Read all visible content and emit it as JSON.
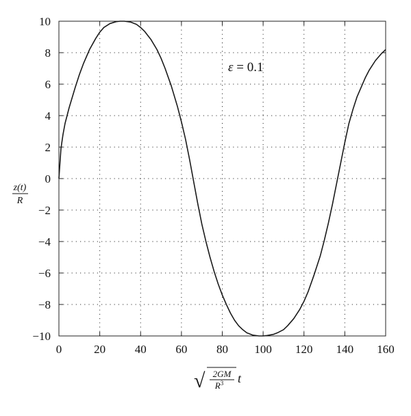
{
  "chart_data": {
    "type": "line",
    "title": "",
    "xlim": [
      0,
      160
    ],
    "ylim": [
      -10,
      10
    ],
    "x_ticks": [
      0,
      20,
      40,
      60,
      80,
      100,
      120,
      140,
      160
    ],
    "y_ticks": [
      10,
      8,
      6,
      4,
      2,
      0,
      -2,
      -4,
      -6,
      -8,
      -10
    ],
    "x_tick_labels": [
      "0",
      "20",
      "40",
      "60",
      "80",
      "100",
      "120",
      "140",
      "160"
    ],
    "y_tick_labels": [
      "10",
      "8",
      "6",
      "4",
      "2",
      "0",
      "−2",
      "−4",
      "−6",
      "−8",
      "−10"
    ],
    "grid": true,
    "grid_style": "dotted",
    "annotation": {
      "symbol": "ε",
      "text": " = 0.1"
    },
    "xlabel": {
      "radical": "√",
      "numerator": "2GM",
      "denominator": "R",
      "denominator_exp": "3",
      "variable": "t"
    },
    "ylabel": {
      "numerator": "z(t)",
      "denominator": "R"
    },
    "line_color": "#1a1a1a",
    "series": [
      {
        "values_x": [
          0,
          1,
          2,
          3,
          5,
          8,
          10,
          12,
          15,
          18,
          20,
          22,
          25,
          28,
          30,
          32,
          35,
          38,
          40,
          42,
          45,
          48,
          50,
          52,
          55,
          58,
          60,
          62,
          64,
          66,
          68,
          70,
          72,
          74,
          76,
          78,
          80,
          82,
          84,
          86,
          88,
          90,
          92,
          95,
          98,
          100,
          102,
          105,
          107,
          110,
          112,
          115,
          118,
          120,
          122,
          125,
          128,
          130,
          132,
          134,
          136,
          138,
          140,
          142,
          144,
          146,
          148,
          150,
          152,
          155,
          158,
          160
        ],
        "values_y": [
          0,
          1.9,
          2.8,
          3.5,
          4.5,
          5.8,
          6.6,
          7.3,
          8.2,
          8.9,
          9.3,
          9.6,
          9.85,
          9.97,
          10,
          10,
          9.95,
          9.8,
          9.6,
          9.35,
          8.85,
          8.2,
          7.65,
          7.0,
          5.9,
          4.6,
          3.6,
          2.5,
          1.2,
          -0.2,
          -1.6,
          -2.9,
          -4.0,
          -5.0,
          -5.9,
          -6.7,
          -7.4,
          -8.0,
          -8.55,
          -9.0,
          -9.35,
          -9.6,
          -9.8,
          -9.95,
          -10,
          -10,
          -9.97,
          -9.9,
          -9.8,
          -9.6,
          -9.35,
          -8.9,
          -8.3,
          -7.8,
          -7.2,
          -6.1,
          -4.9,
          -3.9,
          -2.8,
          -1.6,
          -0.3,
          1.0,
          2.3,
          3.5,
          4.4,
          5.2,
          5.8,
          6.4,
          6.9,
          7.5,
          7.95,
          8.2
        ]
      }
    ]
  }
}
